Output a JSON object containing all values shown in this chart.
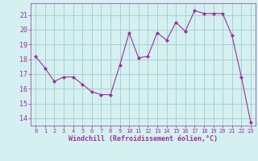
{
  "x": [
    0,
    1,
    2,
    3,
    4,
    5,
    6,
    7,
    8,
    9,
    10,
    11,
    12,
    13,
    14,
    15,
    16,
    17,
    18,
    19,
    20,
    21,
    22,
    23
  ],
  "y": [
    18.2,
    17.4,
    16.5,
    16.8,
    16.8,
    16.3,
    15.8,
    15.6,
    15.6,
    17.6,
    19.8,
    18.1,
    18.2,
    19.8,
    19.3,
    20.5,
    19.9,
    21.3,
    21.1,
    21.1,
    21.1,
    19.6,
    16.8,
    13.7
  ],
  "line_color": "#993399",
  "marker": "D",
  "marker_size": 2,
  "bg_color": "#d4f0f0",
  "grid_color": "#aacfcf",
  "xlabel": "Windchill (Refroidissement éolien,°C)",
  "xlabel_color": "#993399",
  "tick_color": "#993399",
  "ylim": [
    13.5,
    21.8
  ],
  "xlim": [
    -0.5,
    23.5
  ],
  "yticks": [
    14,
    15,
    16,
    17,
    18,
    19,
    20,
    21
  ],
  "xticks": [
    0,
    1,
    2,
    3,
    4,
    5,
    6,
    7,
    8,
    9,
    10,
    11,
    12,
    13,
    14,
    15,
    16,
    17,
    18,
    19,
    20,
    21,
    22,
    23
  ],
  "ytick_fontsize": 6,
  "xtick_fontsize": 5,
  "xlabel_fontsize": 6
}
